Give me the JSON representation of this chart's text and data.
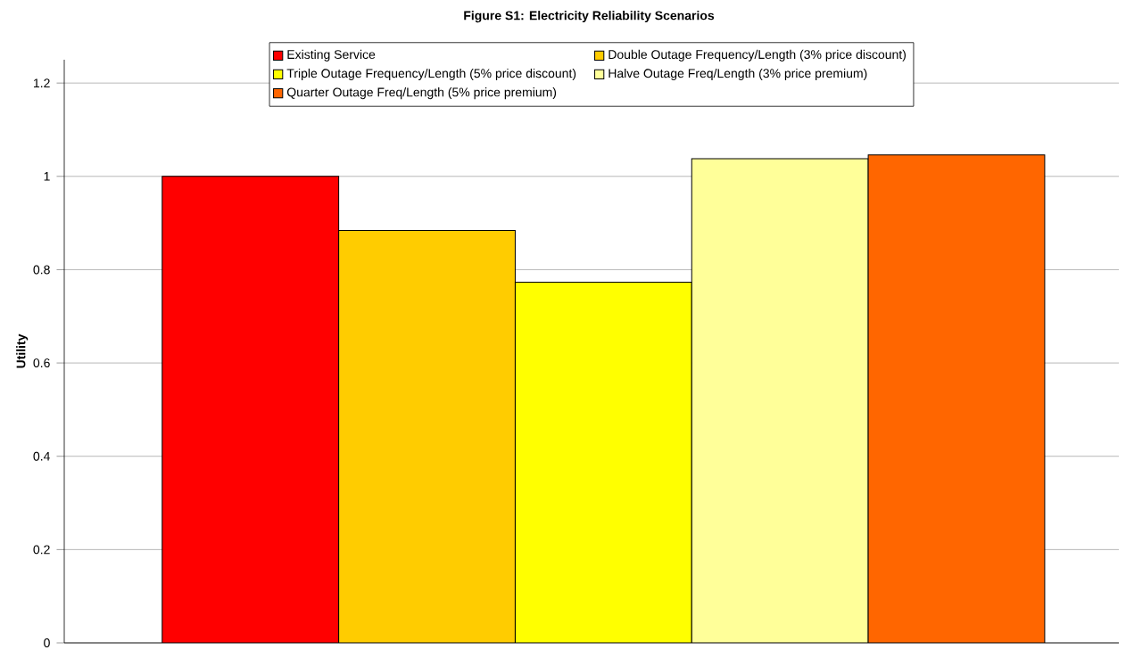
{
  "chart_data": {
    "type": "bar",
    "title": "Figure S1: Electricity Reliability Scenarios",
    "ylabel": "Utility",
    "categories": [
      null
    ],
    "series": [
      {
        "name": "Existing Service",
        "color": "#ff0000",
        "values": [
          1.0
        ]
      },
      {
        "name": "Double Outage Frequency/Length (3% price discount)",
        "color": "#ffcc00",
        "values": [
          0.884
        ]
      },
      {
        "name": "Triple Outage Frequency/Length (5% price discount)",
        "color": "#ffff00",
        "values": [
          0.773
        ]
      },
      {
        "name": "Halve Outage Freq/Length (3% price premium)",
        "color": "#ffff99",
        "values": [
          1.038
        ]
      },
      {
        "name": "Quarter Outage Freq/Length (5% price premium)",
        "color": "#ff6600",
        "values": [
          1.046
        ]
      }
    ],
    "ylim": [
      0,
      1.25
    ],
    "yticks": [
      0,
      0.2,
      0.4,
      0.6,
      0.8,
      1,
      1.2
    ],
    "grid": "y",
    "legend": "top"
  }
}
